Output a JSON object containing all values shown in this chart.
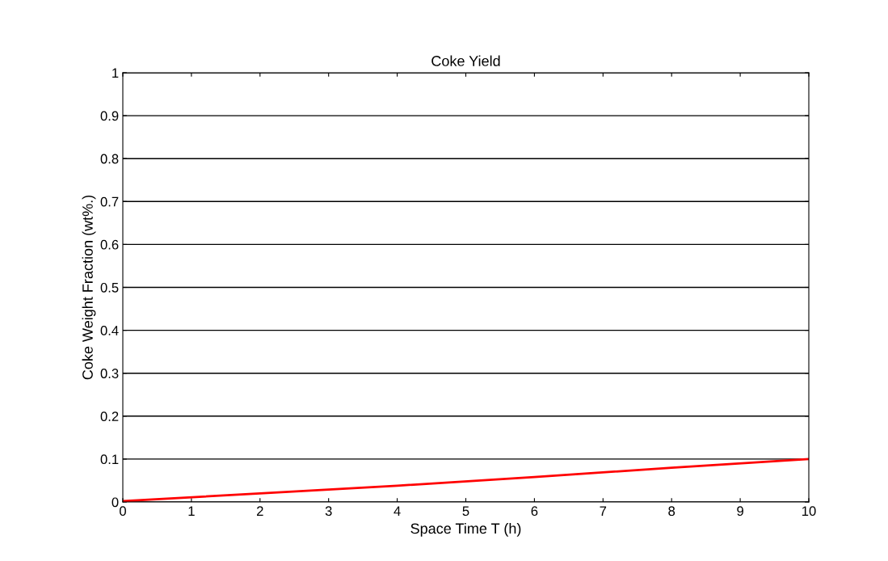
{
  "chart_data": {
    "type": "line",
    "title": "Coke Yield",
    "xlabel": "Space Time T (h)",
    "ylabel": "Coke Weight Fraction (wt%.)",
    "x": [
      0,
      2,
      4,
      6,
      8,
      10
    ],
    "series": [
      {
        "color": "#ff0000",
        "values": [
          0.002,
          0.02,
          0.038,
          0.058,
          0.08,
          0.1
        ]
      }
    ],
    "xlim": [
      0,
      10
    ],
    "ylim": [
      0,
      1
    ],
    "xticks": [
      0,
      1,
      2,
      3,
      4,
      5,
      6,
      7,
      8,
      9,
      10
    ],
    "yticks": [
      0,
      0.1,
      0.2,
      0.3,
      0.4,
      0.5,
      0.6,
      0.7,
      0.8,
      0.9,
      1
    ],
    "grid": "y",
    "line_style": "solid",
    "marker": "none"
  }
}
